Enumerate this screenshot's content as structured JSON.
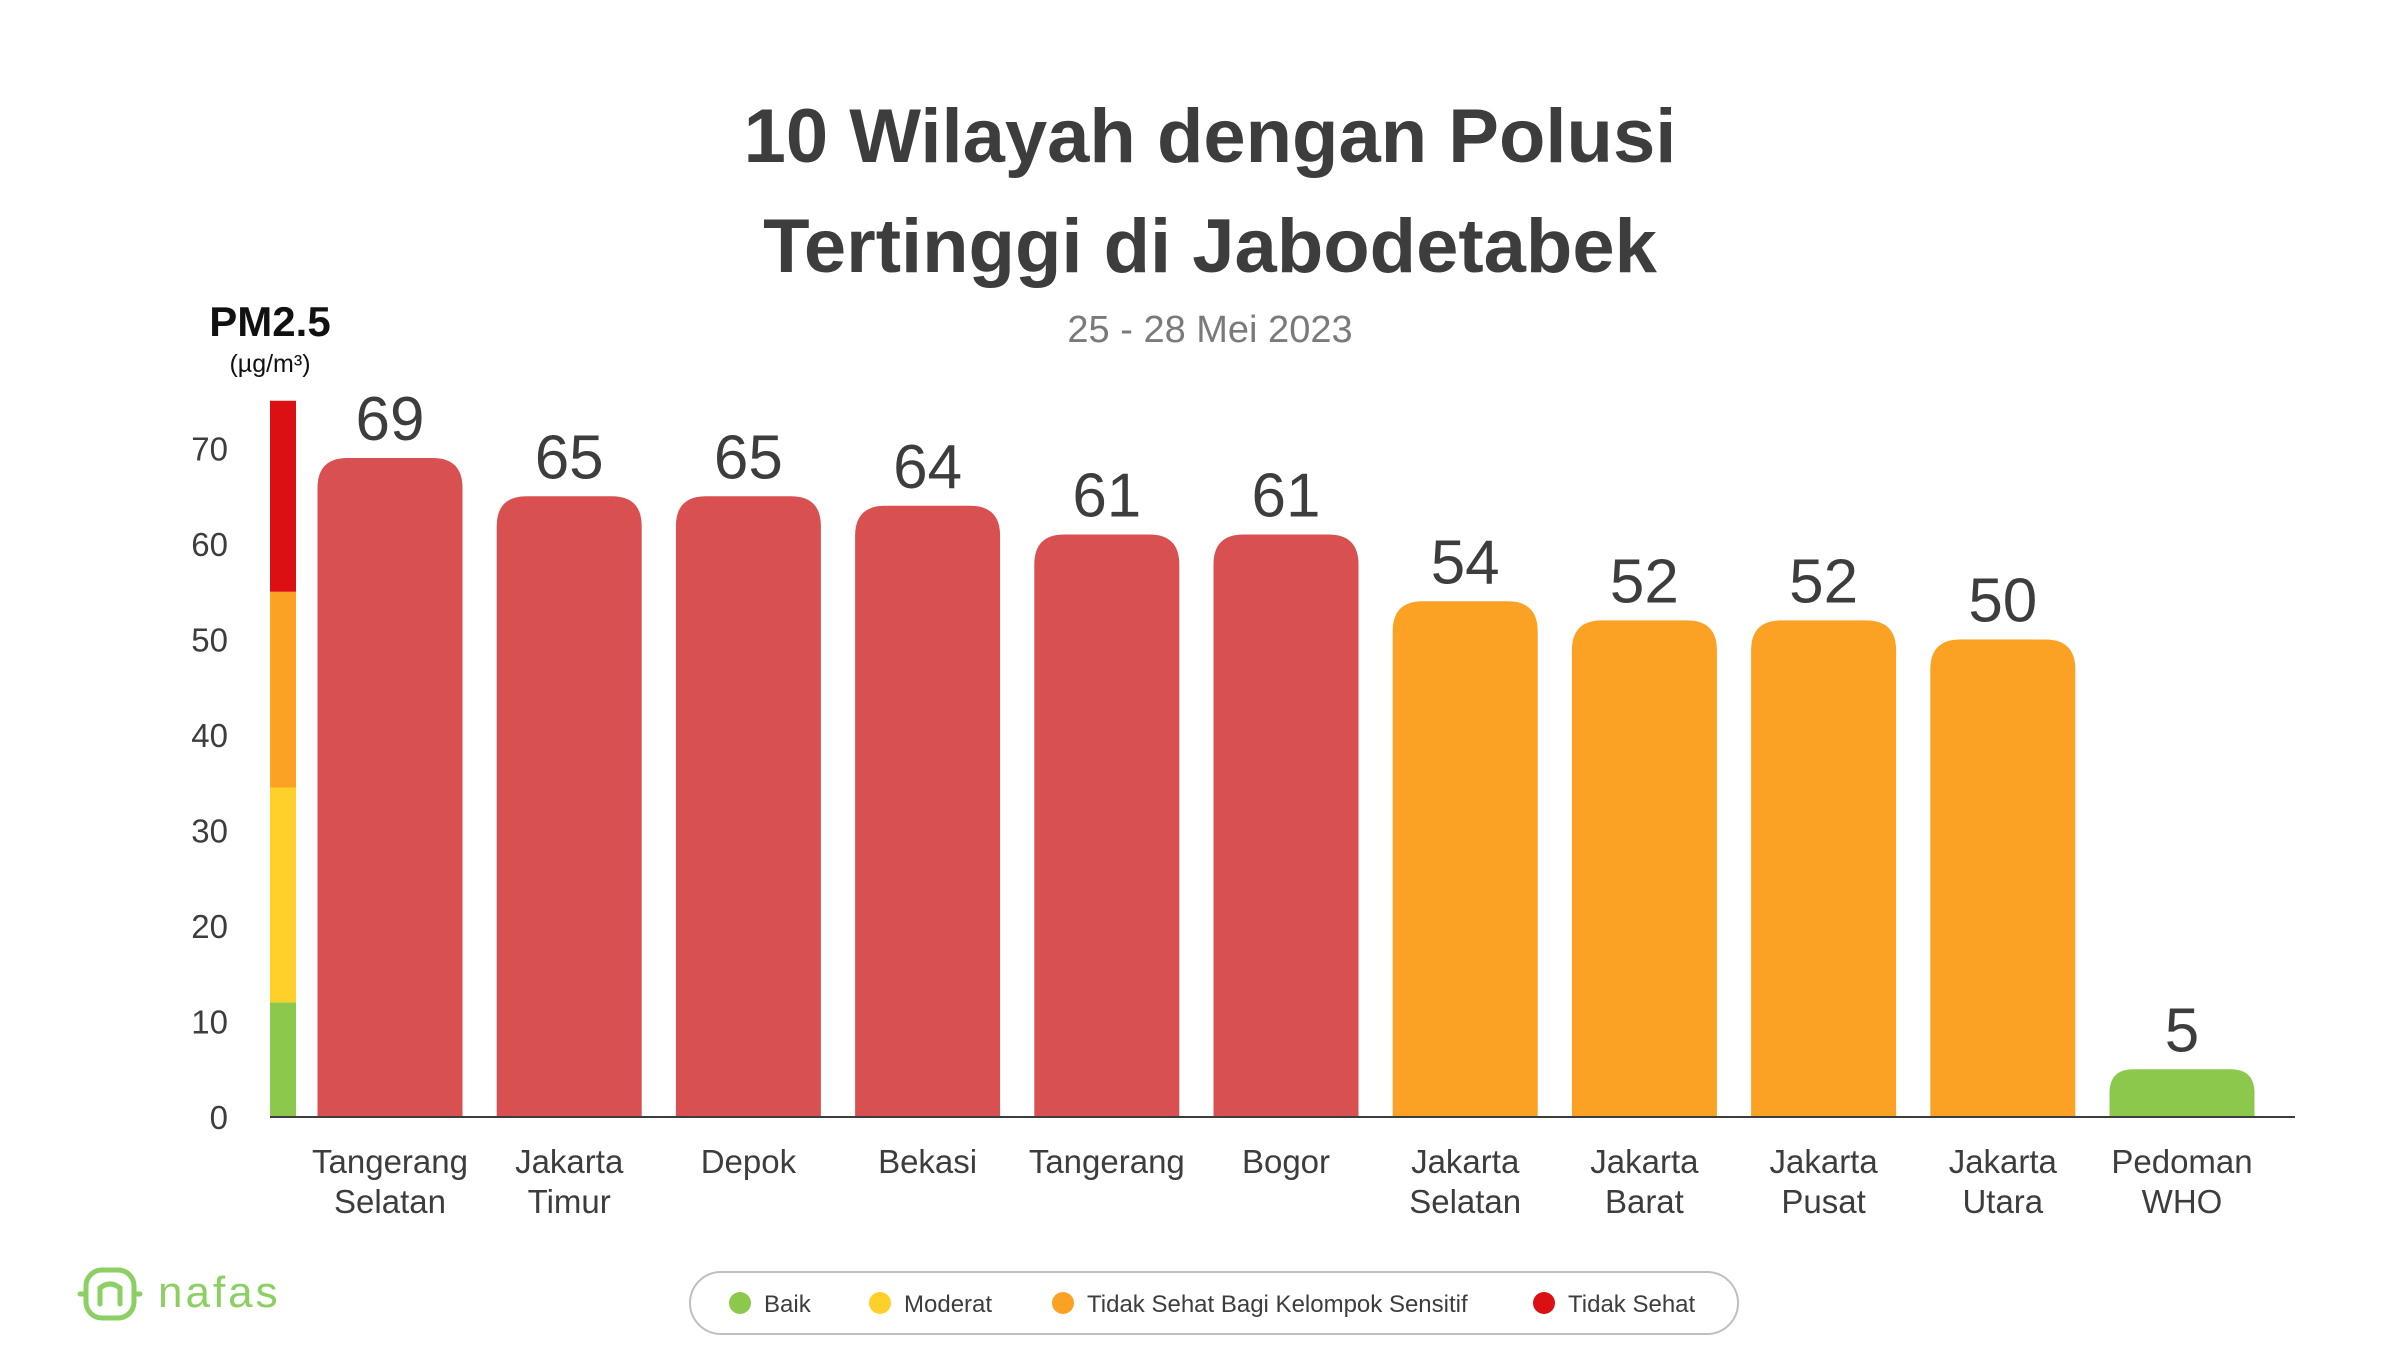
{
  "colors": {
    "baik": "#8cc84b",
    "moderat": "#ffd02a",
    "sensitif": "#fba124",
    "tidak_sehat": "#dc0f12",
    "bar_red": "#d85050",
    "bar_orange": "#fba124",
    "bar_green": "#8cc84b",
    "text": "#3d3d3d",
    "logo": "#8ccf62"
  },
  "logo": {
    "text": "nafas",
    "icon": "nafas-logo-icon"
  },
  "chart_data": {
    "type": "bar",
    "title": [
      "10 Wilayah dengan Polusi",
      "Tertinggi di Jabodetabek"
    ],
    "subtitle": "25 - 28 Mei 2023",
    "ylabel": "PM2.5",
    "yunit": "(µg/m³)",
    "ylim": [
      0,
      75
    ],
    "yticks": [
      0,
      10,
      20,
      30,
      40,
      50,
      60,
      70
    ],
    "grid": false,
    "legend_position": "bottom-center",
    "categories": [
      [
        "Tangerang",
        "Selatan"
      ],
      [
        "Jakarta",
        "Timur"
      ],
      [
        "Depok"
      ],
      [
        "Bekasi"
      ],
      [
        "Tangerang"
      ],
      [
        "Bogor"
      ],
      [
        "Jakarta",
        "Selatan"
      ],
      [
        "Jakarta",
        "Barat"
      ],
      [
        "Jakarta",
        "Pusat"
      ],
      [
        "Jakarta",
        "Utara"
      ],
      [
        "Pedoman",
        "WHO"
      ]
    ],
    "values": [
      69,
      65,
      65,
      64,
      61,
      61,
      54,
      52,
      52,
      50,
      5
    ],
    "value_labels": [
      "69",
      "65",
      "65",
      "64",
      "61",
      "61",
      "54",
      "52",
      "52",
      "50",
      "5"
    ],
    "bar_colors": [
      "#d85050",
      "#d85050",
      "#d85050",
      "#d85050",
      "#d85050",
      "#d85050",
      "#fba124",
      "#fba124",
      "#fba124",
      "#fba124",
      "#8cc84b"
    ],
    "scale_bands": [
      {
        "from": 0,
        "to": 12,
        "color": "#8cc84b"
      },
      {
        "from": 12,
        "to": 34.5,
        "color": "#ffd02a"
      },
      {
        "from": 34.5,
        "to": 55,
        "color": "#fba124"
      },
      {
        "from": 55,
        "to": 75,
        "color": "#dc0f12"
      }
    ],
    "legend": [
      {
        "label": "Baik",
        "color": "#8cc84b"
      },
      {
        "label": "Moderat",
        "color": "#ffd02a"
      },
      {
        "label": "Tidak Sehat Bagi Kelompok Sensitif",
        "color": "#fba124"
      },
      {
        "label": "Tidak Sehat",
        "color": "#dc0f12"
      }
    ]
  }
}
